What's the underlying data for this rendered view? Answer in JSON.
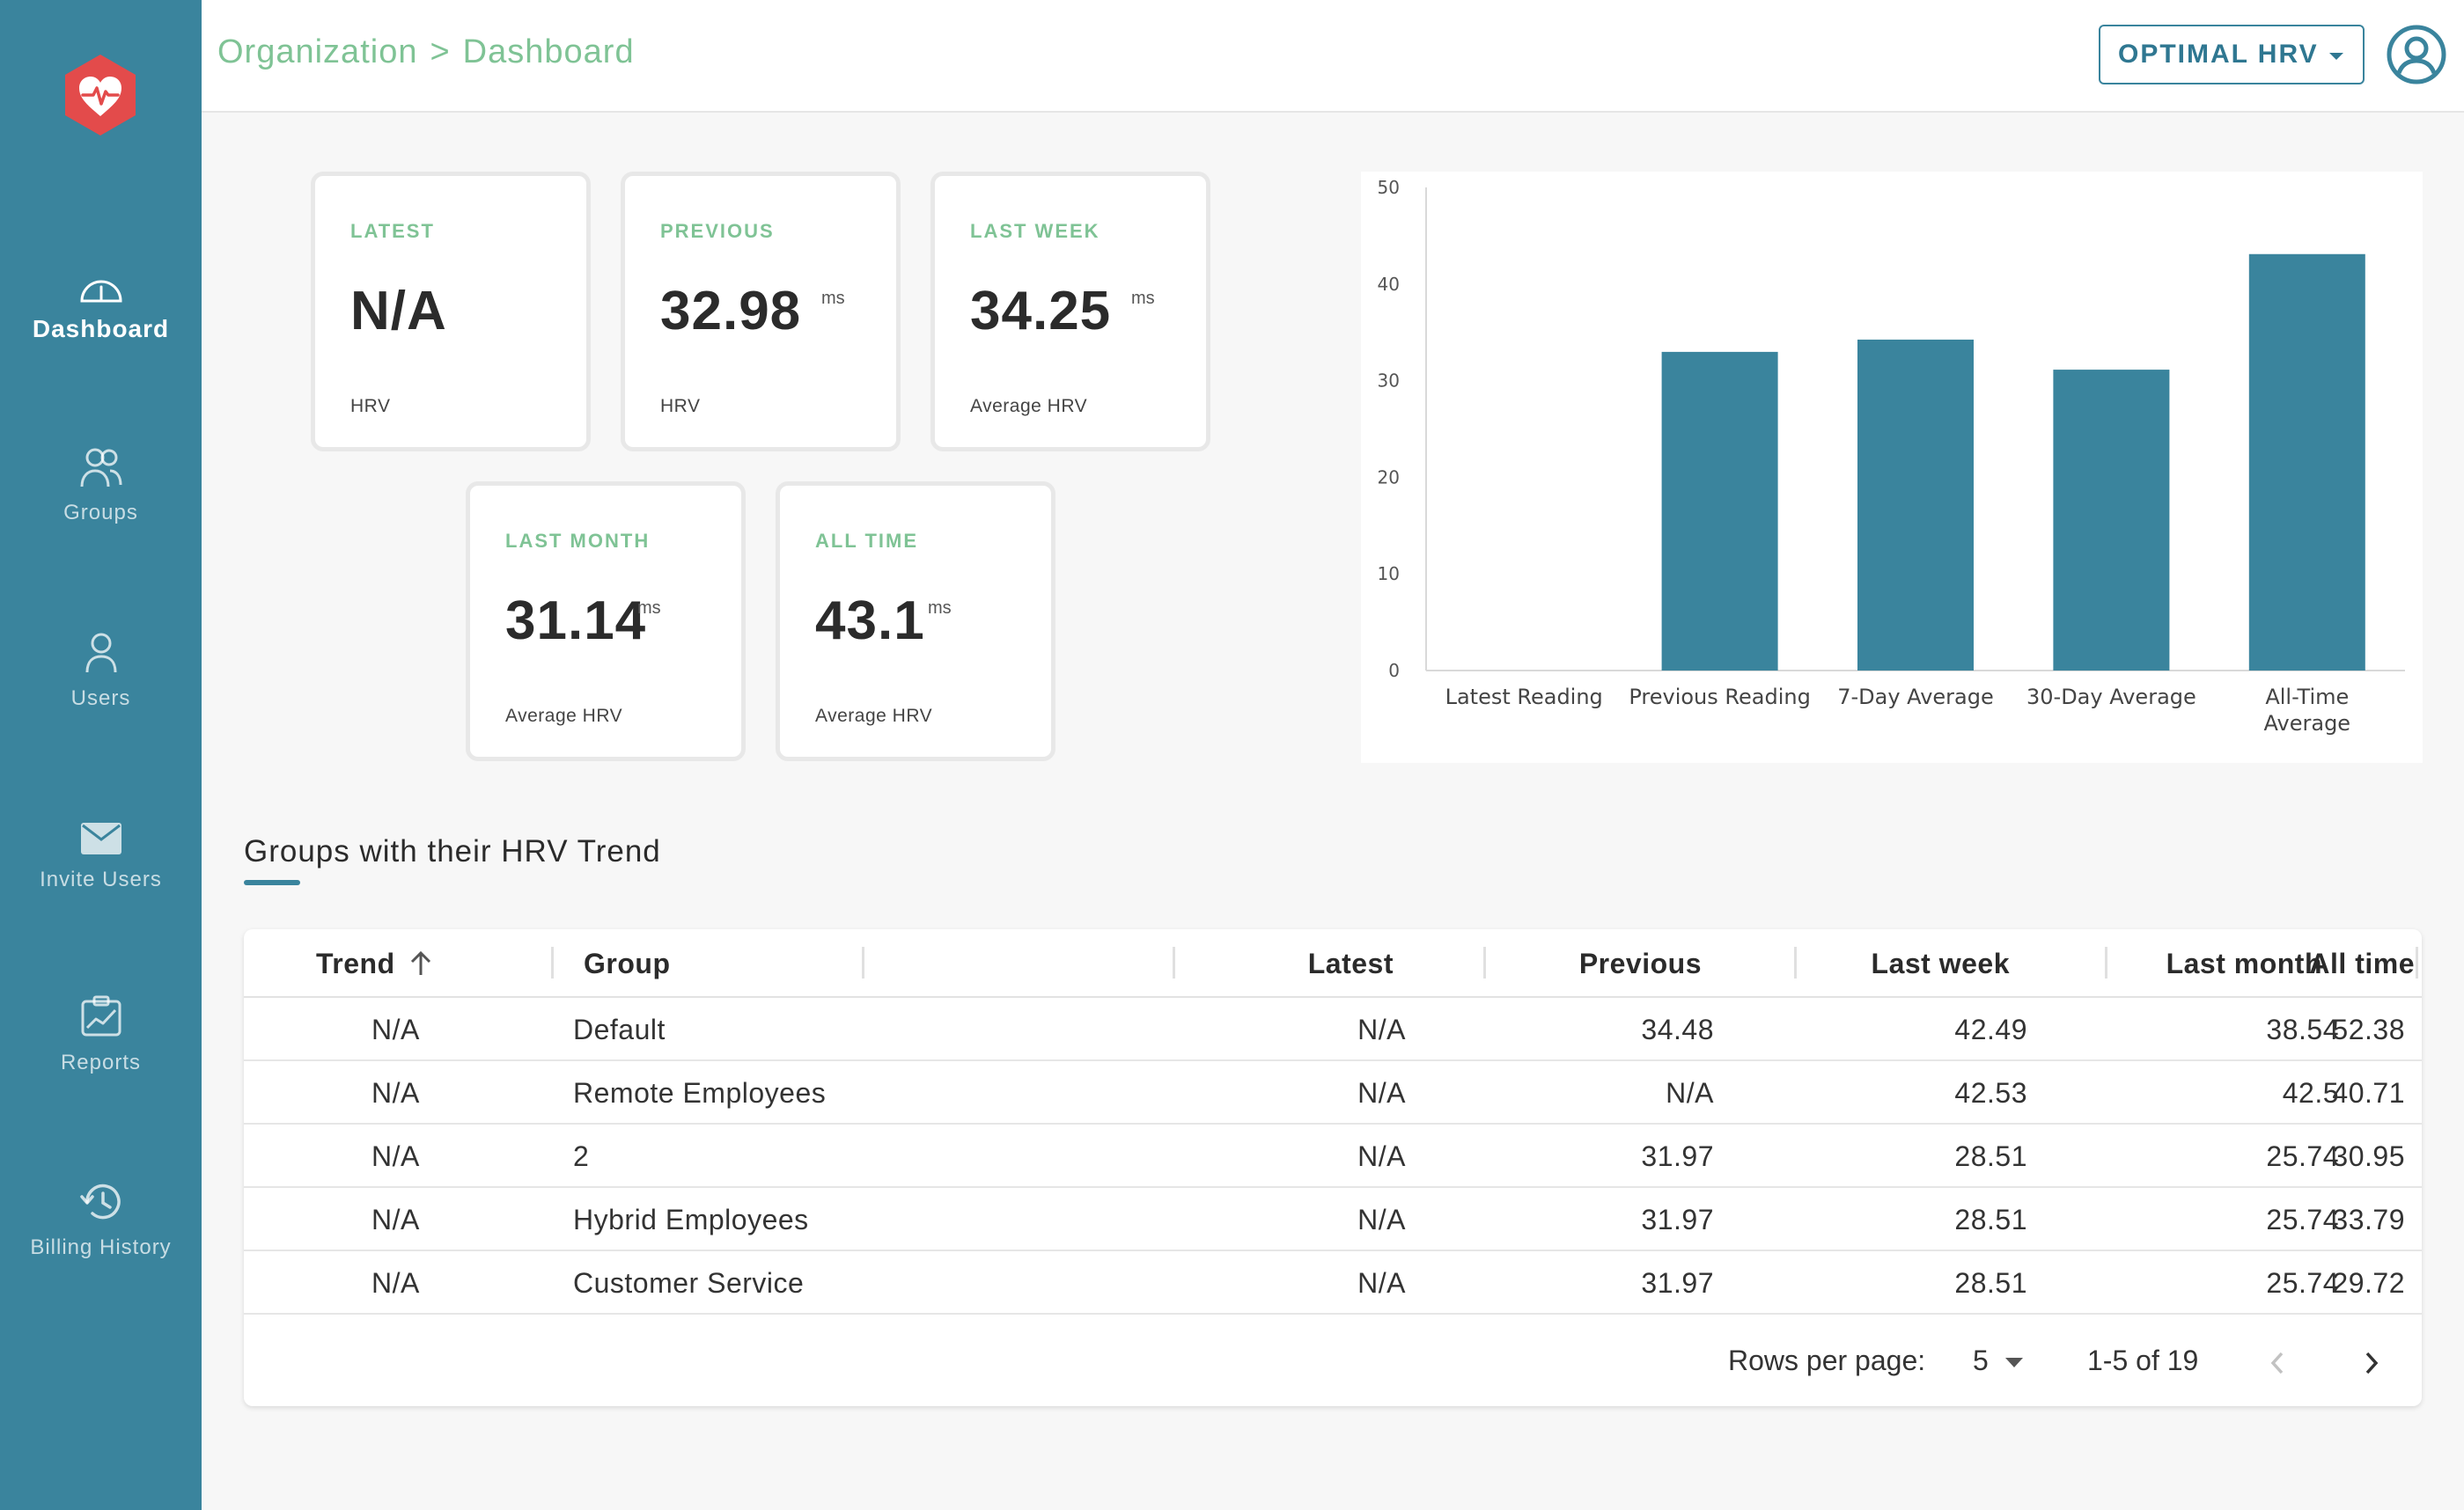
{
  "app": {
    "brand_color": "#3a849d",
    "accent_green": "#7fc395"
  },
  "sidebar": {
    "items": [
      {
        "label": "Dashboard",
        "icon": "speedometer-icon",
        "active": true
      },
      {
        "label": "Groups",
        "icon": "users-group-icon"
      },
      {
        "label": "Users",
        "icon": "user-icon"
      },
      {
        "label": "Invite Users",
        "icon": "envelope-icon"
      },
      {
        "label": "Reports",
        "icon": "report-chart-icon"
      },
      {
        "label": "Billing History",
        "icon": "history-clock-icon"
      }
    ]
  },
  "header": {
    "breadcrumb": {
      "parent": "Organization",
      "separator": ">",
      "current": "Dashboard"
    },
    "metric_select": {
      "value": "OPTIMAL HRV"
    }
  },
  "stats": [
    {
      "label": "LATEST",
      "value": "N/A",
      "unit": "",
      "sub": "HRV"
    },
    {
      "label": "PREVIOUS",
      "value": "32.98",
      "unit": "ms",
      "sub": "HRV"
    },
    {
      "label": "LAST WEEK",
      "value": "34.25",
      "unit": "ms",
      "sub": "Average HRV"
    },
    {
      "label": "LAST MONTH",
      "value": "31.14",
      "unit": "ms",
      "sub": "Average HRV"
    },
    {
      "label": "ALL TIME",
      "value": "43.1",
      "unit": "ms",
      "sub": "Average HRV"
    }
  ],
  "chart_data": {
    "type": "bar",
    "categories": [
      "Latest Reading",
      "Previous Reading",
      "7-Day Average",
      "30-Day Average",
      "All-Time Average"
    ],
    "values": [
      0,
      32.98,
      34.25,
      31.14,
      43.1
    ],
    "ylim": [
      0,
      50
    ],
    "yticks": [
      0,
      10,
      20,
      30,
      40,
      50
    ],
    "bar_color": "#3a849d",
    "grid": false
  },
  "section": {
    "title": "Groups with their HRV Trend"
  },
  "table": {
    "columns": [
      "Trend",
      "Group",
      "Latest",
      "Previous",
      "Last week",
      "Last month",
      "All time"
    ],
    "rows": [
      [
        "N/A",
        "Default",
        "N/A",
        "34.48",
        "42.49",
        "38.54",
        "52.38"
      ],
      [
        "N/A",
        "Remote Employees",
        "N/A",
        "N/A",
        "42.53",
        "42.5",
        "40.71"
      ],
      [
        "N/A",
        "2",
        "N/A",
        "31.97",
        "28.51",
        "25.74",
        "30.95"
      ],
      [
        "N/A",
        "Hybrid Employees",
        "N/A",
        "31.97",
        "28.51",
        "25.74",
        "33.79"
      ],
      [
        "N/A",
        "Customer Service",
        "N/A",
        "31.97",
        "28.51",
        "25.74",
        "29.72"
      ]
    ],
    "pagination": {
      "rows_per_page_label": "Rows per page:",
      "rows_per_page": "5",
      "range": "1-5 of 19"
    }
  }
}
